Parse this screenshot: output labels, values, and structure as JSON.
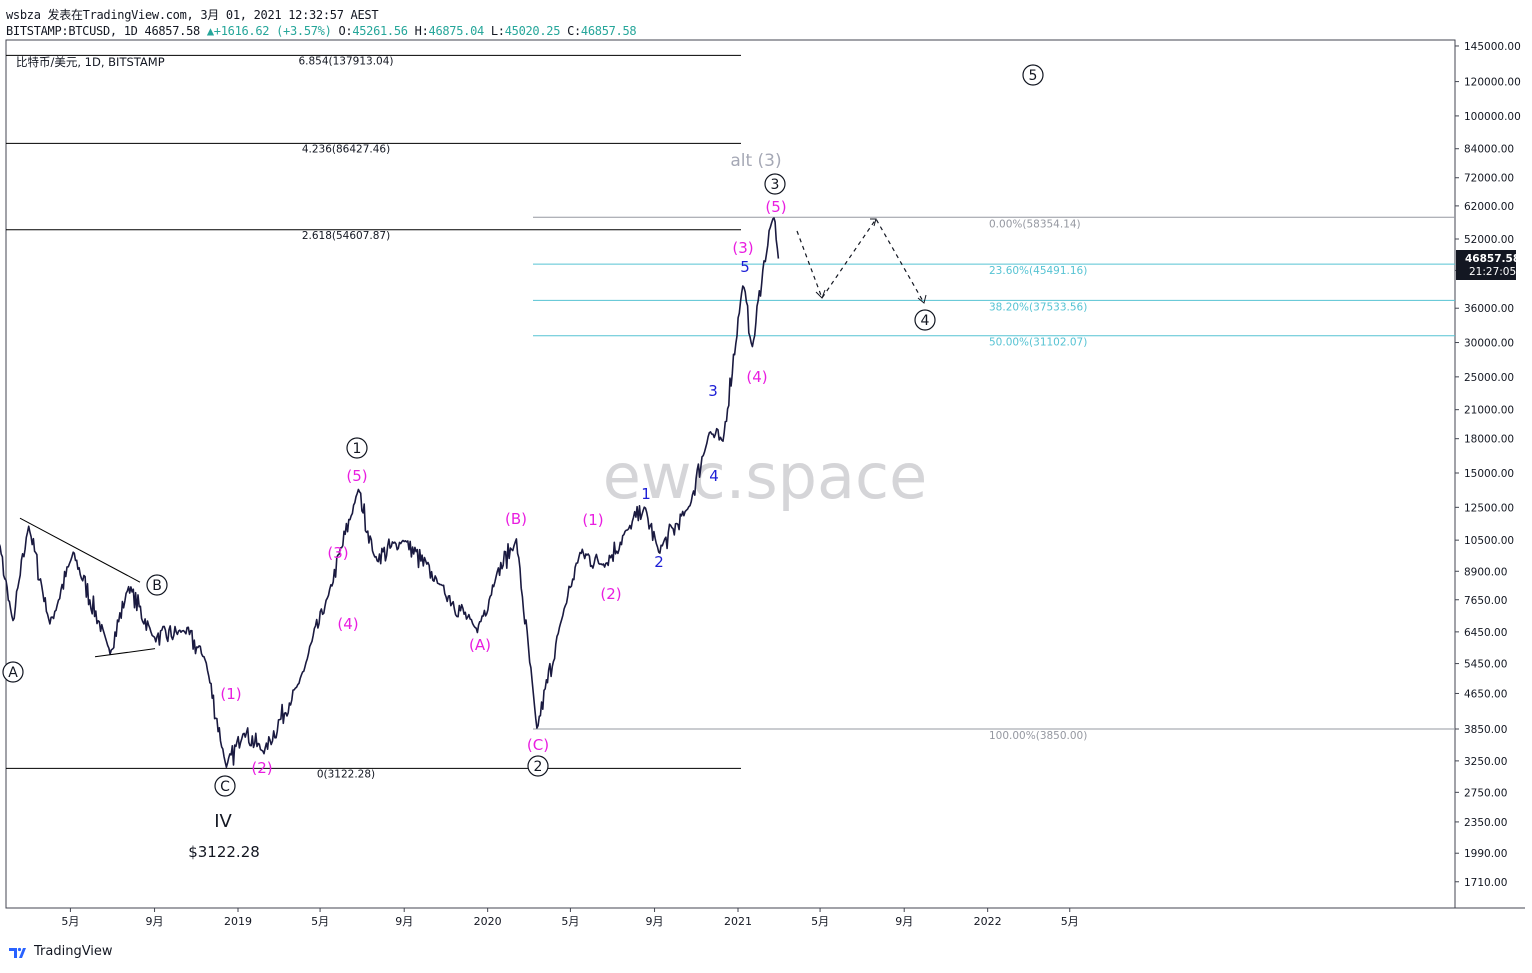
{
  "header": {
    "line1": "wsbza 发表在TradingView.com, 3月 01, 2021 12:32:57 AEST",
    "symbol": "BITSTAMP:BTCUSD, 1D",
    "last": "46857.58",
    "change": "+1616.62 (+3.57%)",
    "open_label": "O:",
    "open": "45261.56",
    "high_label": "H:",
    "high": "46875.04",
    "low_label": "L:",
    "low": "45020.25",
    "close_label": "C:",
    "close": "46857.58"
  },
  "chart_title": "比特币/美元, 1D, BITSTAMP",
  "watermark": "ewc.space",
  "price_tag": {
    "price": "46857.58",
    "countdown": "21:27:05"
  },
  "footer": {
    "brand": "TradingView"
  },
  "colors": {
    "candle": "#1a1a40",
    "magenta": "#e91ee0",
    "blue": "#1d1fd6",
    "fib": "#56c3d3",
    "fibgray": "#9598a1",
    "tag": "#131722",
    "alt": "#a5a8b5"
  },
  "chart_data": {
    "type": "line",
    "title": "比特币/美元, 1D, BITSTAMP",
    "xlabel": "",
    "ylabel": "",
    "scale": "log",
    "ylim": [
      1500,
      150000
    ],
    "x_tick_labels": [
      "5月",
      "9月",
      "2019",
      "5月",
      "9月",
      "2020",
      "5月",
      "9月",
      "2021",
      "5月",
      "9月",
      "2022",
      "5月"
    ],
    "y_tick_labels": [
      "145000.00",
      "120000.00",
      "100000.00",
      "84000.00",
      "72000.00",
      "62000.00",
      "52000.00",
      "44000.00",
      "36000.00",
      "30000.00",
      "25000.00",
      "21000.00",
      "18000.00",
      "15000.00",
      "12500.00",
      "10500.00",
      "8900.00",
      "7650.00",
      "6450.00",
      "5450.00",
      "4650.00",
      "3850.00",
      "3250.00",
      "2750.00",
      "2350.00",
      "1990.00",
      "1710.00"
    ],
    "series": [
      {
        "name": "",
        "x": [
          "2018-01-01",
          "2018-02-06",
          "2018-03-01",
          "2018-04-01",
          "2018-05-05",
          "2018-06-28",
          "2018-07-25",
          "2018-09-01",
          "2018-10-15",
          "2018-11-14",
          "2018-12-15",
          "2019-01-10",
          "2019-02-08",
          "2019-04-02",
          "2019-05-15",
          "2019-06-26",
          "2019-07-20",
          "2019-09-01",
          "2019-10-25",
          "2019-12-17",
          "2020-01-15",
          "2020-02-12",
          "2020-03-13",
          "2020-04-20",
          "2020-05-15",
          "2020-06-20",
          "2020-07-27",
          "2020-08-17",
          "2020-09-07",
          "2020-10-21",
          "2020-11-20",
          "2020-12-10",
          "2021-01-08",
          "2021-01-22",
          "2021-02-08",
          "2021-02-21",
          "2021-03-01"
        ],
        "values": [
          14000,
          6800,
          11400,
          6700,
          9800,
          5800,
          8200,
          6200,
          6500,
          5600,
          3122,
          3800,
          3400,
          5000,
          8000,
          13800,
          9500,
          10500,
          8200,
          6500,
          8800,
          10500,
          3850,
          7100,
          9800,
          9200,
          11300,
          12400,
          9900,
          12500,
          18600,
          17700,
          41000,
          29000,
          46000,
          58354,
          46857.58
        ]
      }
    ],
    "fib_left": [
      {
        "label": "6.854(137913.04)",
        "price": 137913.04
      },
      {
        "label": "4.236(86427.46)",
        "price": 86427.46
      },
      {
        "label": "2.618(54607.87)",
        "price": 54607.87
      },
      {
        "label": "0(3122.28)",
        "price": 3122.28
      }
    ],
    "fib_right": [
      {
        "label": "0.00%(58354.14)",
        "price": 58354.14
      },
      {
        "label": "23.60%(45491.16)",
        "price": 45491.16
      },
      {
        "label": "38.20%(37533.56)",
        "price": 37533.56
      },
      {
        "label": "50.00%(31102.07)",
        "price": 31102.07
      },
      {
        "label": "100.00%(3850.00)",
        "price": 3850.0
      }
    ],
    "annotations": {
      "circled": [
        "A",
        "B",
        "C",
        "1",
        "2",
        "3",
        "4",
        "5"
      ],
      "magenta": [
        "(1)",
        "(2)",
        "(3)",
        "(4)",
        "(5)",
        "(A)",
        "(B)",
        "(C)",
        "(1)",
        "(2)",
        "(3)",
        "(4)",
        "(5)"
      ],
      "blue": [
        "1",
        "2",
        "3",
        "4",
        "5"
      ],
      "alt": "alt (3)",
      "big_iv": "IV",
      "low_price": "$3122.28"
    },
    "grid": false
  }
}
